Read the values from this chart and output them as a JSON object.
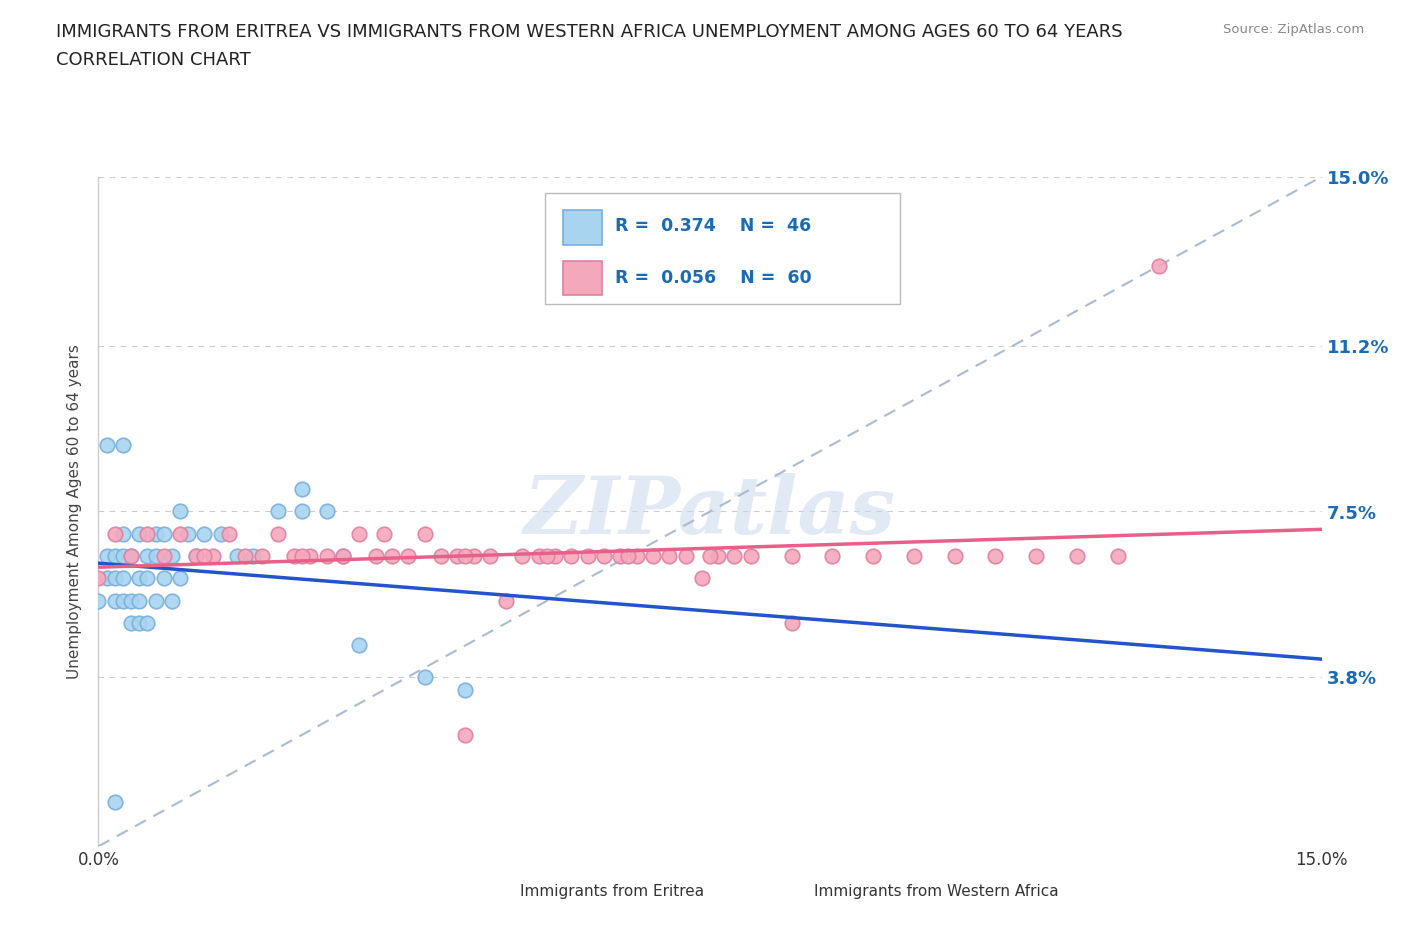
{
  "title_line1": "IMMIGRANTS FROM ERITREA VS IMMIGRANTS FROM WESTERN AFRICA UNEMPLOYMENT AMONG AGES 60 TO 64 YEARS",
  "title_line2": "CORRELATION CHART",
  "source": "Source: ZipAtlas.com",
  "ylabel": "Unemployment Among Ages 60 to 64 years",
  "xmin": 0.0,
  "xmax": 0.15,
  "ymin": 0.0,
  "ymax": 0.15,
  "ytick_vals": [
    0.038,
    0.075,
    0.112,
    0.15
  ],
  "ytick_labels": [
    "3.8%",
    "7.5%",
    "11.2%",
    "15.0%"
  ],
  "legend_label1": "Immigrants from Eritrea",
  "legend_label2": "Immigrants from Western Africa",
  "R1": 0.374,
  "N1": 46,
  "R2": 0.056,
  "N2": 60,
  "color1": "#A8D4F0",
  "color2": "#F4A8BC",
  "line_color1": "#2255CC",
  "line_color2": "#E8608A",
  "watermark_text": "ZIPatlas",
  "background_color": "#FFFFFF",
  "grid_color": "#CCCCCC",
  "scatter1_x": [
    0.0,
    0.001,
    0.001,
    0.002,
    0.002,
    0.002,
    0.003,
    0.003,
    0.003,
    0.003,
    0.004,
    0.004,
    0.004,
    0.005,
    0.005,
    0.005,
    0.005,
    0.006,
    0.006,
    0.006,
    0.007,
    0.007,
    0.007,
    0.008,
    0.008,
    0.009,
    0.009,
    0.01,
    0.01,
    0.011,
    0.012,
    0.013,
    0.015,
    0.017,
    0.019,
    0.022,
    0.025,
    0.025,
    0.028,
    0.03,
    0.032,
    0.04,
    0.045,
    0.003,
    0.001,
    0.002
  ],
  "scatter1_y": [
    0.055,
    0.06,
    0.065,
    0.055,
    0.06,
    0.065,
    0.055,
    0.06,
    0.065,
    0.07,
    0.05,
    0.055,
    0.065,
    0.05,
    0.055,
    0.06,
    0.07,
    0.05,
    0.06,
    0.065,
    0.055,
    0.065,
    0.07,
    0.06,
    0.07,
    0.055,
    0.065,
    0.06,
    0.075,
    0.07,
    0.065,
    0.07,
    0.07,
    0.065,
    0.065,
    0.075,
    0.075,
    0.08,
    0.075,
    0.065,
    0.045,
    0.038,
    0.035,
    0.09,
    0.09,
    0.01
  ],
  "scatter2_x": [
    0.0,
    0.002,
    0.004,
    0.006,
    0.008,
    0.01,
    0.012,
    0.014,
    0.016,
    0.018,
    0.02,
    0.022,
    0.024,
    0.026,
    0.028,
    0.03,
    0.032,
    0.034,
    0.036,
    0.038,
    0.04,
    0.042,
    0.044,
    0.046,
    0.048,
    0.05,
    0.052,
    0.054,
    0.056,
    0.058,
    0.06,
    0.062,
    0.064,
    0.066,
    0.068,
    0.07,
    0.072,
    0.074,
    0.076,
    0.078,
    0.08,
    0.085,
    0.09,
    0.095,
    0.1,
    0.105,
    0.11,
    0.115,
    0.12,
    0.125,
    0.013,
    0.025,
    0.035,
    0.045,
    0.055,
    0.065,
    0.075,
    0.085,
    0.045,
    0.13
  ],
  "scatter2_y": [
    0.06,
    0.07,
    0.065,
    0.07,
    0.065,
    0.07,
    0.065,
    0.065,
    0.07,
    0.065,
    0.065,
    0.07,
    0.065,
    0.065,
    0.065,
    0.065,
    0.07,
    0.065,
    0.065,
    0.065,
    0.07,
    0.065,
    0.065,
    0.065,
    0.065,
    0.055,
    0.065,
    0.065,
    0.065,
    0.065,
    0.065,
    0.065,
    0.065,
    0.065,
    0.065,
    0.065,
    0.065,
    0.06,
    0.065,
    0.065,
    0.065,
    0.065,
    0.065,
    0.065,
    0.065,
    0.065,
    0.065,
    0.065,
    0.065,
    0.065,
    0.065,
    0.065,
    0.07,
    0.065,
    0.065,
    0.065,
    0.065,
    0.05,
    0.025,
    0.13
  ]
}
